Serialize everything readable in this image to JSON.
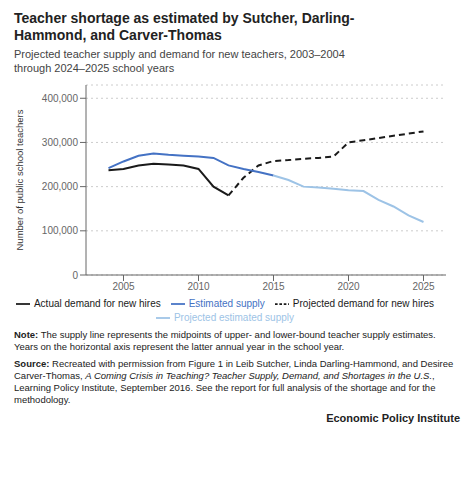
{
  "chart_data": {
    "type": "line",
    "title": "Teacher shortage as estimated by Sutcher, Darling-\nHammond, and Carver-Thomas",
    "subtitle": "Projected teacher supply and demand for new teachers, 2003–2004\nthrough 2024–2025 school years",
    "ylabel": "Number of public school teachers",
    "xlim": [
      2002.5,
      2026.5
    ],
    "xticks": [
      2005,
      2010,
      2015,
      2020,
      2025
    ],
    "ylim": [
      0,
      430000
    ],
    "yticks": [
      0,
      {
        "value": 100000,
        "label": "100,000"
      },
      {
        "value": 200000,
        "label": "200,000"
      },
      {
        "value": 300000,
        "label": "300,000"
      },
      {
        "value": 400000,
        "label": "400,000"
      }
    ],
    "grid": true,
    "legend": "bottom",
    "series": [
      {
        "name": "Actual demand for new hires",
        "color": "#1a1a1a",
        "line_style": "solid",
        "x": [
          2004,
          2005,
          2006,
          2007,
          2008,
          2009,
          2010,
          2011,
          2012
        ],
        "values": [
          237000,
          240000,
          248000,
          252000,
          250000,
          248000,
          240000,
          200000,
          180000
        ]
      },
      {
        "name": "Projected demand for new hires",
        "color": "#1a1a1a",
        "line_style": "dashed",
        "x": [
          2012,
          2013,
          2014,
          2015,
          2016,
          2017,
          2018,
          2019,
          2020,
          2021,
          2022,
          2023,
          2024,
          2025
        ],
        "values": [
          180000,
          220000,
          248000,
          258000,
          260000,
          263000,
          265000,
          268000,
          300000,
          305000,
          310000,
          315000,
          320000,
          325000
        ]
      },
      {
        "name": "Estimated supply",
        "color": "#4472c4",
        "line_style": "solid",
        "x": [
          2004,
          2005,
          2006,
          2007,
          2008,
          2009,
          2010,
          2011,
          2012,
          2013,
          2014,
          2015
        ],
        "values": [
          242000,
          257000,
          270000,
          275000,
          272000,
          270000,
          268000,
          265000,
          248000,
          240000,
          233000,
          225000
        ]
      },
      {
        "name": "Projected estimated supply",
        "color": "#9dc3e6",
        "line_style": "solid",
        "x": [
          2015,
          2016,
          2017,
          2018,
          2019,
          2020,
          2021,
          2022,
          2023,
          2024,
          2025
        ],
        "values": [
          225000,
          215000,
          200000,
          198000,
          195000,
          192000,
          190000,
          170000,
          155000,
          135000,
          120000
        ]
      }
    ],
    "note_label": "Note:",
    "note": " The supply line represents the midpoints of upper- and lower-bound teacher supply estimates. Years on the horizontal axis represent the latter annual year in the school year.",
    "source_label": "Source:",
    "source": " Recreated with permission from Figure 1 in Leib Sutcher, Linda Darling-Hammond, and Desiree Carver-Thomas, ",
    "source_title": "A Coming Crisis in Teaching? Teacher Supply, Demand, and Shortages in the U.S.",
    "source_end": ", Learning Policy Institute, September 2016. See the report for full analysis of the shortage and for the methodology.",
    "branding": "Economic Policy Institute"
  }
}
